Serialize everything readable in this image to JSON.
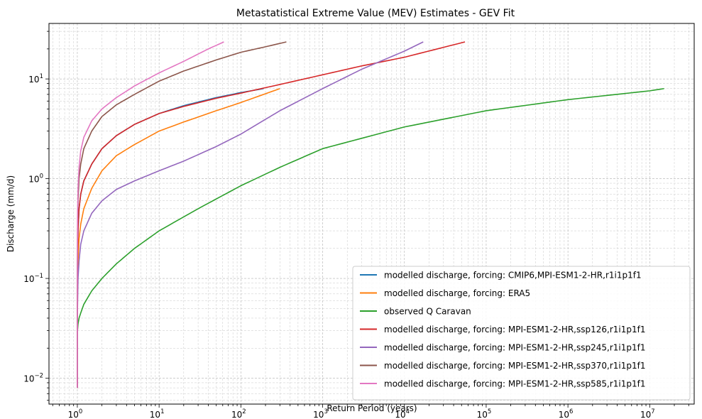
{
  "chart_data": {
    "type": "line",
    "title": "Metastatistical Extreme Value (MEV) Estimates - GEV Fit",
    "xlabel": "Return Period (years)",
    "ylabel": "Discharge (mm/d)",
    "xscale": "log",
    "yscale": "log",
    "xlim": [
      0.45,
      35000000
    ],
    "ylim": [
      0.0055,
      36
    ],
    "x_ticks": [
      {
        "mantissa": "10",
        "exp": "0"
      },
      {
        "mantissa": "10",
        "exp": "1"
      },
      {
        "mantissa": "10",
        "exp": "2"
      },
      {
        "mantissa": "10",
        "exp": "3"
      },
      {
        "mantissa": "10",
        "exp": "4"
      },
      {
        "mantissa": "10",
        "exp": "5"
      },
      {
        "mantissa": "10",
        "exp": "6"
      },
      {
        "mantissa": "10",
        "exp": "7"
      }
    ],
    "y_ticks": [
      {
        "mantissa": "10",
        "exp": "−2"
      },
      {
        "mantissa": "10",
        "exp": "−1"
      },
      {
        "mantissa": "10",
        "exp": "0"
      },
      {
        "mantissa": "10",
        "exp": "1"
      }
    ],
    "grid": "both (major and minor), dashed",
    "legend_position": "lower right",
    "series": [
      {
        "name": "modelled discharge, forcing: CMIP6,MPI-ESM1-2-HR,r1i1p1f1",
        "color": "#1f77b4",
        "x": [
          1.0,
          1.001,
          1.005,
          1.02,
          1.05,
          1.1,
          1.2,
          1.5,
          2,
          3,
          5,
          10,
          20,
          50,
          100,
          190
        ],
        "y": [
          0.008,
          0.05,
          0.15,
          0.3,
          0.5,
          0.7,
          0.95,
          1.4,
          2.0,
          2.7,
          3.5,
          4.5,
          5.4,
          6.5,
          7.3,
          8.0
        ]
      },
      {
        "name": "modelled discharge, forcing: ERA5",
        "color": "#ff7f0e",
        "x": [
          1.0,
          1.001,
          1.005,
          1.02,
          1.05,
          1.1,
          1.2,
          1.5,
          2,
          3,
          5,
          10,
          20,
          50,
          100,
          300
        ],
        "y": [
          0.008,
          0.03,
          0.08,
          0.15,
          0.25,
          0.35,
          0.5,
          0.8,
          1.2,
          1.7,
          2.2,
          3.0,
          3.7,
          4.8,
          5.8,
          8.0
        ]
      },
      {
        "name": "observed Q Caravan",
        "color": "#2ca02c",
        "x": [
          1.0,
          1.005,
          1.02,
          1.05,
          1.1,
          1.2,
          1.5,
          2,
          3,
          5,
          10,
          30,
          100,
          300,
          1000,
          10000,
          100000,
          1000000,
          10000000,
          15000000
        ],
        "y": [
          0.008,
          0.03,
          0.035,
          0.04,
          0.045,
          0.055,
          0.075,
          0.1,
          0.14,
          0.2,
          0.3,
          0.5,
          0.85,
          1.3,
          2.0,
          3.3,
          4.8,
          6.2,
          7.6,
          8.0
        ]
      },
      {
        "name": "modelled discharge, forcing: MPI-ESM1-2-HR,ssp126,r1i1p1f1",
        "color": "#d62728",
        "x": [
          1.0,
          1.001,
          1.005,
          1.02,
          1.05,
          1.1,
          1.2,
          1.5,
          2,
          3,
          5,
          10,
          20,
          50,
          100,
          300,
          1000,
          3000,
          10000,
          55000
        ],
        "y": [
          0.008,
          0.05,
          0.15,
          0.3,
          0.5,
          0.7,
          0.95,
          1.4,
          2.0,
          2.7,
          3.5,
          4.5,
          5.3,
          6.4,
          7.2,
          8.8,
          11.0,
          13.5,
          16.5,
          23.5
        ]
      },
      {
        "name": "modelled discharge, forcing: MPI-ESM1-2-HR,ssp245,r1i1p1f1",
        "color": "#9467bd",
        "x": [
          1.0,
          1.001,
          1.005,
          1.02,
          1.05,
          1.1,
          1.2,
          1.5,
          2,
          3,
          5,
          10,
          20,
          50,
          100,
          300,
          1000,
          3000,
          10000,
          17000
        ],
        "y": [
          0.008,
          0.02,
          0.05,
          0.1,
          0.15,
          0.22,
          0.3,
          0.45,
          0.6,
          0.78,
          0.95,
          1.2,
          1.5,
          2.1,
          2.8,
          4.8,
          8.0,
          12.5,
          19.0,
          23.5
        ]
      },
      {
        "name": "modelled discharge, forcing: MPI-ESM1-2-HR,ssp370,r1i1p1f1",
        "color": "#8c564b",
        "x": [
          1.0,
          1.001,
          1.005,
          1.02,
          1.05,
          1.1,
          1.2,
          1.5,
          2,
          3,
          5,
          10,
          20,
          50,
          100,
          200,
          360
        ],
        "y": [
          0.008,
          0.1,
          0.3,
          0.6,
          1.0,
          1.4,
          2.0,
          3.0,
          4.2,
          5.5,
          7.0,
          9.5,
          12.0,
          15.5,
          18.5,
          21.0,
          23.5
        ]
      },
      {
        "name": "modelled discharge, forcing: MPI-ESM1-2-HR,ssp585,r1i1p1f1",
        "color": "#e377c2",
        "x": [
          1.0,
          1.001,
          1.005,
          1.02,
          1.05,
          1.1,
          1.2,
          1.5,
          2,
          3,
          5,
          10,
          20,
          40,
          62
        ],
        "y": [
          0.008,
          0.12,
          0.4,
          0.8,
          1.3,
          1.9,
          2.6,
          3.8,
          5.0,
          6.5,
          8.5,
          11.5,
          15.0,
          20.0,
          23.5
        ]
      }
    ]
  }
}
